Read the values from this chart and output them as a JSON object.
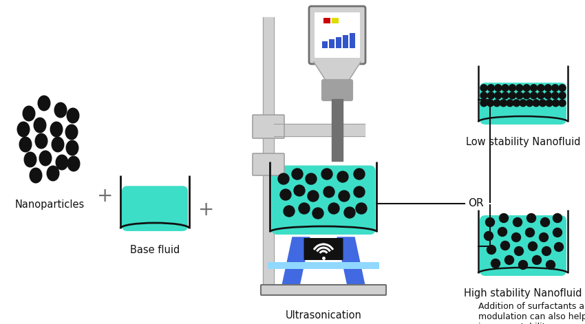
{
  "bg_color": "#ffffff",
  "teal_color": "#3DDEC8",
  "black_color": "#111111",
  "gray_light": "#D0D0D0",
  "gray_mid": "#A0A0A0",
  "gray_dark": "#707070",
  "blue_color": "#4169E1",
  "blue_dark": "#2244AA",
  "nanoparticles_label": "Nanoparticles",
  "base_fluid_label": "Base fluid",
  "ultrasonication_label": "Ultrasonication",
  "low_stability_label": "Low stability Nanofluid",
  "high_stability_label": "High stability Nanofluid",
  "footnote": "Addition of surfactants and pH\nmodulation can also help\nimprove stability",
  "or_label": "OR"
}
